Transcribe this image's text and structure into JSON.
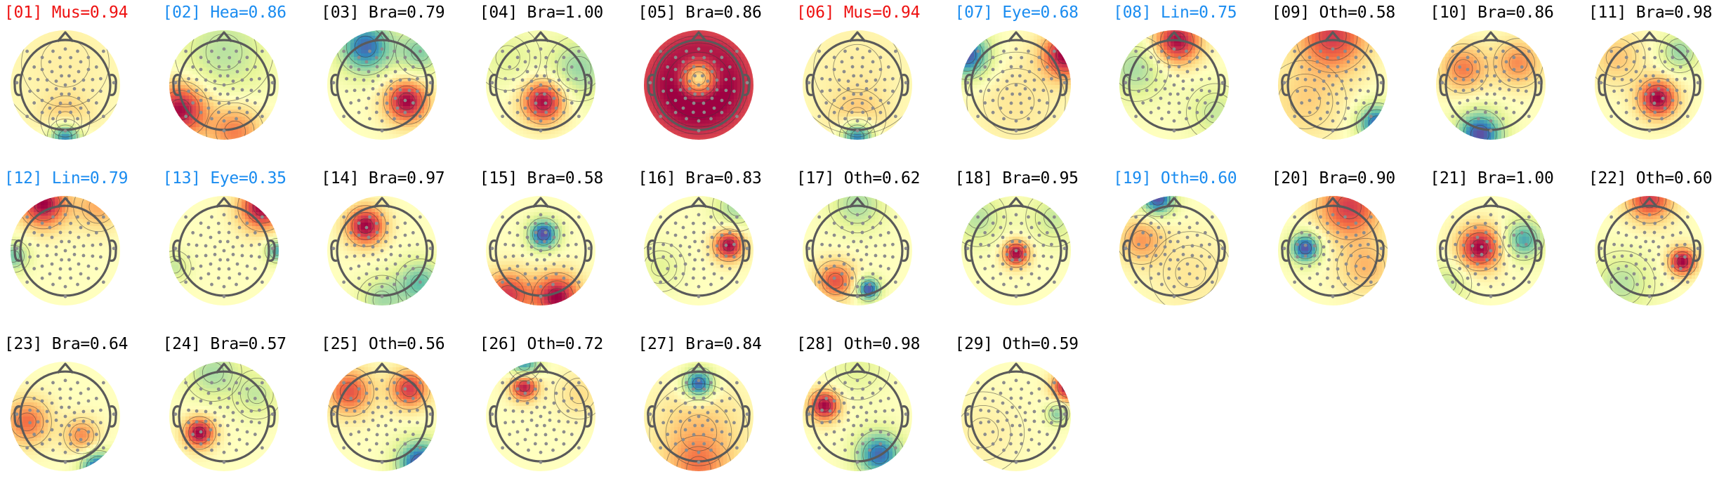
{
  "chart_data": {
    "type": "topomap-grid",
    "title": "",
    "colormap": "Spectral_r",
    "label_colors": {
      "brain": "#000000",
      "muscle": "#ee1111",
      "flagged": "#1a8cf0"
    },
    "columns": 11,
    "components": [
      {
        "index": "01",
        "label": "Mus",
        "score": "0.94",
        "title": "[01] Mus=0.94",
        "status": "muscle",
        "blobs": [
          {
            "x": 0.0,
            "y": -0.95,
            "v": -1.0,
            "s": 0.22
          },
          {
            "x": 0.0,
            "y": -0.65,
            "v": 0.35,
            "s": 0.3
          },
          {
            "x": 0.0,
            "y": 0.4,
            "v": 0.1,
            "s": 0.8
          }
        ]
      },
      {
        "index": "02",
        "label": "Hea",
        "score": "0.86",
        "title": "[02] Hea=0.86",
        "status": "flagged",
        "blobs": [
          {
            "x": -0.8,
            "y": -0.45,
            "v": 1.0,
            "s": 0.35
          },
          {
            "x": 0.2,
            "y": -0.85,
            "v": 0.55,
            "s": 0.35
          },
          {
            "x": 0.0,
            "y": 0.6,
            "v": -0.35,
            "s": 0.6
          }
        ]
      },
      {
        "index": "03",
        "label": "Bra",
        "score": "0.79",
        "title": "[03] Bra=0.79",
        "status": "brain",
        "blobs": [
          {
            "x": 0.45,
            "y": -0.3,
            "v": 1.0,
            "s": 0.28
          },
          {
            "x": -0.3,
            "y": 0.7,
            "v": -0.9,
            "s": 0.35
          },
          {
            "x": 0.7,
            "y": 0.6,
            "v": -0.5,
            "s": 0.3
          }
        ]
      },
      {
        "index": "04",
        "label": "Bra",
        "score": "1.00",
        "title": "[04] Bra=1.00",
        "status": "brain",
        "blobs": [
          {
            "x": 0.05,
            "y": -0.3,
            "v": 1.0,
            "s": 0.28
          },
          {
            "x": 0.7,
            "y": 0.3,
            "v": -0.45,
            "s": 0.4
          },
          {
            "x": -0.6,
            "y": 0.5,
            "v": -0.2,
            "s": 0.4
          }
        ]
      },
      {
        "index": "05",
        "label": "Bra",
        "score": "0.86",
        "title": "[05] Bra=0.86",
        "status": "brain",
        "blobs": [
          {
            "x": 0.0,
            "y": 0.12,
            "v": -1.0,
            "s": 0.22
          },
          {
            "x": 0.0,
            "y": 0.0,
            "v": 0.3,
            "s": 0.6
          },
          {
            "x": 0.0,
            "y": 0.0,
            "v": 0.9,
            "s": 1.4
          }
        ]
      },
      {
        "index": "06",
        "label": "Mus",
        "score": "0.94",
        "title": "[06] Mus=0.94",
        "status": "muscle",
        "blobs": [
          {
            "x": 0.0,
            "y": -0.95,
            "v": -1.0,
            "s": 0.22
          },
          {
            "x": 0.0,
            "y": -0.6,
            "v": 0.3,
            "s": 0.35
          },
          {
            "x": 0.0,
            "y": 0.3,
            "v": 0.1,
            "s": 0.8
          }
        ]
      },
      {
        "index": "07",
        "label": "Eye",
        "score": "0.68",
        "title": "[07] Eye=0.68",
        "status": "flagged",
        "blobs": [
          {
            "x": -0.9,
            "y": 0.55,
            "v": -1.0,
            "s": 0.3
          },
          {
            "x": 0.9,
            "y": 0.55,
            "v": 1.0,
            "s": 0.3
          },
          {
            "x": 0.0,
            "y": -0.3,
            "v": 0.15,
            "s": 0.6
          }
        ]
      },
      {
        "index": "08",
        "label": "Lin",
        "score": "0.75",
        "title": "[08] Lin=0.75",
        "status": "flagged",
        "blobs": [
          {
            "x": 0.05,
            "y": 0.8,
            "v": 1.0,
            "s": 0.3
          },
          {
            "x": -0.7,
            "y": 0.3,
            "v": -0.4,
            "s": 0.4
          },
          {
            "x": 0.75,
            "y": -0.5,
            "v": -0.3,
            "s": 0.35
          }
        ]
      },
      {
        "index": "09",
        "label": "Oth",
        "score": "0.58",
        "title": "[09] Oth=0.58",
        "status": "brain",
        "blobs": [
          {
            "x": 0.0,
            "y": 0.9,
            "v": 0.8,
            "s": 0.45
          },
          {
            "x": 0.8,
            "y": -0.7,
            "v": -0.9,
            "s": 0.25
          },
          {
            "x": -0.5,
            "y": -0.3,
            "v": 0.25,
            "s": 0.5
          }
        ]
      },
      {
        "index": "10",
        "label": "Bra",
        "score": "0.86",
        "title": "[10] Bra=0.86",
        "status": "brain",
        "blobs": [
          {
            "x": -0.2,
            "y": -0.9,
            "v": -1.0,
            "s": 0.3
          },
          {
            "x": -0.5,
            "y": 0.3,
            "v": 0.55,
            "s": 0.3
          },
          {
            "x": 0.5,
            "y": 0.4,
            "v": 0.5,
            "s": 0.3
          }
        ]
      },
      {
        "index": "11",
        "label": "Bra",
        "score": "0.98",
        "title": "[11] Bra=0.98",
        "status": "brain",
        "blobs": [
          {
            "x": 0.15,
            "y": -0.25,
            "v": 1.0,
            "s": 0.25
          },
          {
            "x": 0.55,
            "y": 0.6,
            "v": -0.45,
            "s": 0.25
          },
          {
            "x": -0.6,
            "y": 0.5,
            "v": 0.3,
            "s": 0.35
          }
        ]
      },
      {
        "index": "12",
        "label": "Lin",
        "score": "0.79",
        "title": "[12] Lin=0.79",
        "status": "flagged",
        "blobs": [
          {
            "x": -0.4,
            "y": 0.85,
            "v": 1.0,
            "s": 0.3
          },
          {
            "x": -0.95,
            "y": -0.1,
            "v": -0.55,
            "s": 0.2
          },
          {
            "x": 0.6,
            "y": 0.8,
            "v": 0.4,
            "s": 0.3
          }
        ]
      },
      {
        "index": "13",
        "label": "Eye",
        "score": "0.35",
        "title": "[13] Eye=0.35",
        "status": "flagged",
        "blobs": [
          {
            "x": 0.7,
            "y": 0.8,
            "v": 1.0,
            "s": 0.3
          },
          {
            "x": 0.97,
            "y": 0.0,
            "v": -0.7,
            "s": 0.15
          },
          {
            "x": -0.9,
            "y": -0.3,
            "v": -0.3,
            "s": 0.2
          }
        ]
      },
      {
        "index": "14",
        "label": "Bra",
        "score": "0.97",
        "title": "[14] Bra=0.97",
        "status": "brain",
        "blobs": [
          {
            "x": -0.3,
            "y": 0.45,
            "v": 1.0,
            "s": 0.25
          },
          {
            "x": 0.7,
            "y": -0.6,
            "v": -0.6,
            "s": 0.3
          },
          {
            "x": 0.0,
            "y": -0.9,
            "v": -0.4,
            "s": 0.3
          }
        ]
      },
      {
        "index": "15",
        "label": "Bra",
        "score": "0.58",
        "title": "[15] Bra=0.58",
        "status": "brain",
        "blobs": [
          {
            "x": 0.05,
            "y": 0.3,
            "v": -1.0,
            "s": 0.2
          },
          {
            "x": 0.3,
            "y": -0.85,
            "v": 1.0,
            "s": 0.3
          },
          {
            "x": -0.6,
            "y": -0.8,
            "v": 0.8,
            "s": 0.3
          }
        ]
      },
      {
        "index": "16",
        "label": "Bra",
        "score": "0.83",
        "title": "[16] Bra=0.83",
        "status": "brain",
        "blobs": [
          {
            "x": 0.55,
            "y": 0.1,
            "v": 1.0,
            "s": 0.2
          },
          {
            "x": 0.7,
            "y": 0.8,
            "v": -0.4,
            "s": 0.3
          },
          {
            "x": -0.7,
            "y": -0.3,
            "v": -0.2,
            "s": 0.3
          }
        ]
      },
      {
        "index": "17",
        "label": "Oth",
        "score": "0.62",
        "title": "[17] Oth=0.62",
        "status": "brain",
        "blobs": [
          {
            "x": 0.2,
            "y": -0.7,
            "v": -1.0,
            "s": 0.15
          },
          {
            "x": -0.4,
            "y": -0.55,
            "v": 0.7,
            "s": 0.25
          },
          {
            "x": 0.0,
            "y": 0.85,
            "v": -0.4,
            "s": 0.35
          }
        ]
      },
      {
        "index": "18",
        "label": "Bra",
        "score": "0.95",
        "title": "[18] Bra=0.95",
        "status": "brain",
        "blobs": [
          {
            "x": 0.0,
            "y": -0.05,
            "v": 1.0,
            "s": 0.17
          },
          {
            "x": -0.7,
            "y": 0.6,
            "v": -0.35,
            "s": 0.35
          },
          {
            "x": 0.7,
            "y": 0.6,
            "v": -0.3,
            "s": 0.35
          }
        ]
      },
      {
        "index": "19",
        "label": "Oth",
        "score": "0.60",
        "title": "[19] Oth=0.60",
        "status": "flagged",
        "blobs": [
          {
            "x": -0.3,
            "y": 0.95,
            "v": -1.0,
            "s": 0.22
          },
          {
            "x": -0.6,
            "y": 0.2,
            "v": 0.45,
            "s": 0.3
          },
          {
            "x": 0.3,
            "y": -0.4,
            "v": 0.15,
            "s": 0.5
          }
        ]
      },
      {
        "index": "20",
        "label": "Bra",
        "score": "0.90",
        "title": "[20] Bra=0.90",
        "status": "brain",
        "blobs": [
          {
            "x": -0.5,
            "y": 0.05,
            "v": -1.0,
            "s": 0.2
          },
          {
            "x": 0.3,
            "y": 0.8,
            "v": 0.8,
            "s": 0.4
          },
          {
            "x": 0.6,
            "y": -0.3,
            "v": 0.35,
            "s": 0.35
          }
        ]
      },
      {
        "index": "21",
        "label": "Bra",
        "score": "1.00",
        "title": "[21] Bra=1.00",
        "status": "brain",
        "blobs": [
          {
            "x": -0.2,
            "y": 0.05,
            "v": 1.0,
            "s": 0.28
          },
          {
            "x": 0.6,
            "y": 0.2,
            "v": -0.7,
            "s": 0.25
          },
          {
            "x": -0.8,
            "y": -0.6,
            "v": -0.3,
            "s": 0.3
          }
        ]
      },
      {
        "index": "22",
        "label": "Oth",
        "score": "0.60",
        "title": "[22] Oth=0.60",
        "status": "brain",
        "blobs": [
          {
            "x": 0.6,
            "y": -0.2,
            "v": 1.0,
            "s": 0.18
          },
          {
            "x": 0.0,
            "y": 0.95,
            "v": 0.8,
            "s": 0.3
          },
          {
            "x": -0.5,
            "y": -0.6,
            "v": -0.35,
            "s": 0.4
          }
        ]
      },
      {
        "index": "23",
        "label": "Bra",
        "score": "0.64",
        "title": "[23] Bra=0.64",
        "status": "brain",
        "blobs": [
          {
            "x": -0.7,
            "y": -0.1,
            "v": 0.6,
            "s": 0.3
          },
          {
            "x": 0.6,
            "y": -0.95,
            "v": -1.0,
            "s": 0.22
          },
          {
            "x": 0.3,
            "y": -0.35,
            "v": 0.5,
            "s": 0.22
          }
        ]
      },
      {
        "index": "24",
        "label": "Bra",
        "score": "0.57",
        "title": "[24] Bra=0.57",
        "status": "brain",
        "blobs": [
          {
            "x": -0.45,
            "y": -0.3,
            "v": 1.0,
            "s": 0.2
          },
          {
            "x": -0.2,
            "y": 0.8,
            "v": -0.4,
            "s": 0.35
          },
          {
            "x": 0.6,
            "y": 0.4,
            "v": -0.3,
            "s": 0.3
          }
        ]
      },
      {
        "index": "25",
        "label": "Oth",
        "score": "0.56",
        "title": "[25] Oth=0.56",
        "status": "brain",
        "blobs": [
          {
            "x": -0.6,
            "y": 0.45,
            "v": 0.7,
            "s": 0.3
          },
          {
            "x": 0.5,
            "y": 0.5,
            "v": 0.8,
            "s": 0.25
          },
          {
            "x": 0.7,
            "y": -0.85,
            "v": -1.0,
            "s": 0.3
          }
        ]
      },
      {
        "index": "26",
        "label": "Oth",
        "score": "0.72",
        "title": "[26] Oth=0.72",
        "status": "brain",
        "blobs": [
          {
            "x": -0.3,
            "y": 0.55,
            "v": 1.0,
            "s": 0.18
          },
          {
            "x": -0.3,
            "y": 0.95,
            "v": -0.8,
            "s": 0.2
          },
          {
            "x": 0.7,
            "y": 0.4,
            "v": 0.2,
            "s": 0.3
          }
        ]
      },
      {
        "index": "27",
        "label": "Bra",
        "score": "0.84",
        "title": "[27] Bra=0.84",
        "status": "brain",
        "blobs": [
          {
            "x": 0.0,
            "y": 0.6,
            "v": -1.0,
            "s": 0.2
          },
          {
            "x": 0.0,
            "y": -0.3,
            "v": 0.3,
            "s": 0.6
          },
          {
            "x": 0.0,
            "y": -0.95,
            "v": 0.4,
            "s": 0.4
          }
        ]
      },
      {
        "index": "28",
        "label": "Oth",
        "score": "0.98",
        "title": "[28] Oth=0.98",
        "status": "brain",
        "blobs": [
          {
            "x": -0.6,
            "y": 0.2,
            "v": 1.0,
            "s": 0.2
          },
          {
            "x": 0.4,
            "y": -0.7,
            "v": -0.9,
            "s": 0.3
          },
          {
            "x": 0.0,
            "y": 0.9,
            "v": -0.2,
            "s": 0.4
          }
        ]
      },
      {
        "index": "29",
        "label": "Oth",
        "score": "0.59",
        "title": "[29] Oth=0.59",
        "status": "brain",
        "blobs": [
          {
            "x": 0.95,
            "y": 0.55,
            "v": 1.0,
            "s": 0.2
          },
          {
            "x": 0.75,
            "y": 0.05,
            "v": -0.5,
            "s": 0.15
          },
          {
            "x": -0.6,
            "y": -0.3,
            "v": 0.1,
            "s": 0.5
          }
        ]
      }
    ]
  }
}
